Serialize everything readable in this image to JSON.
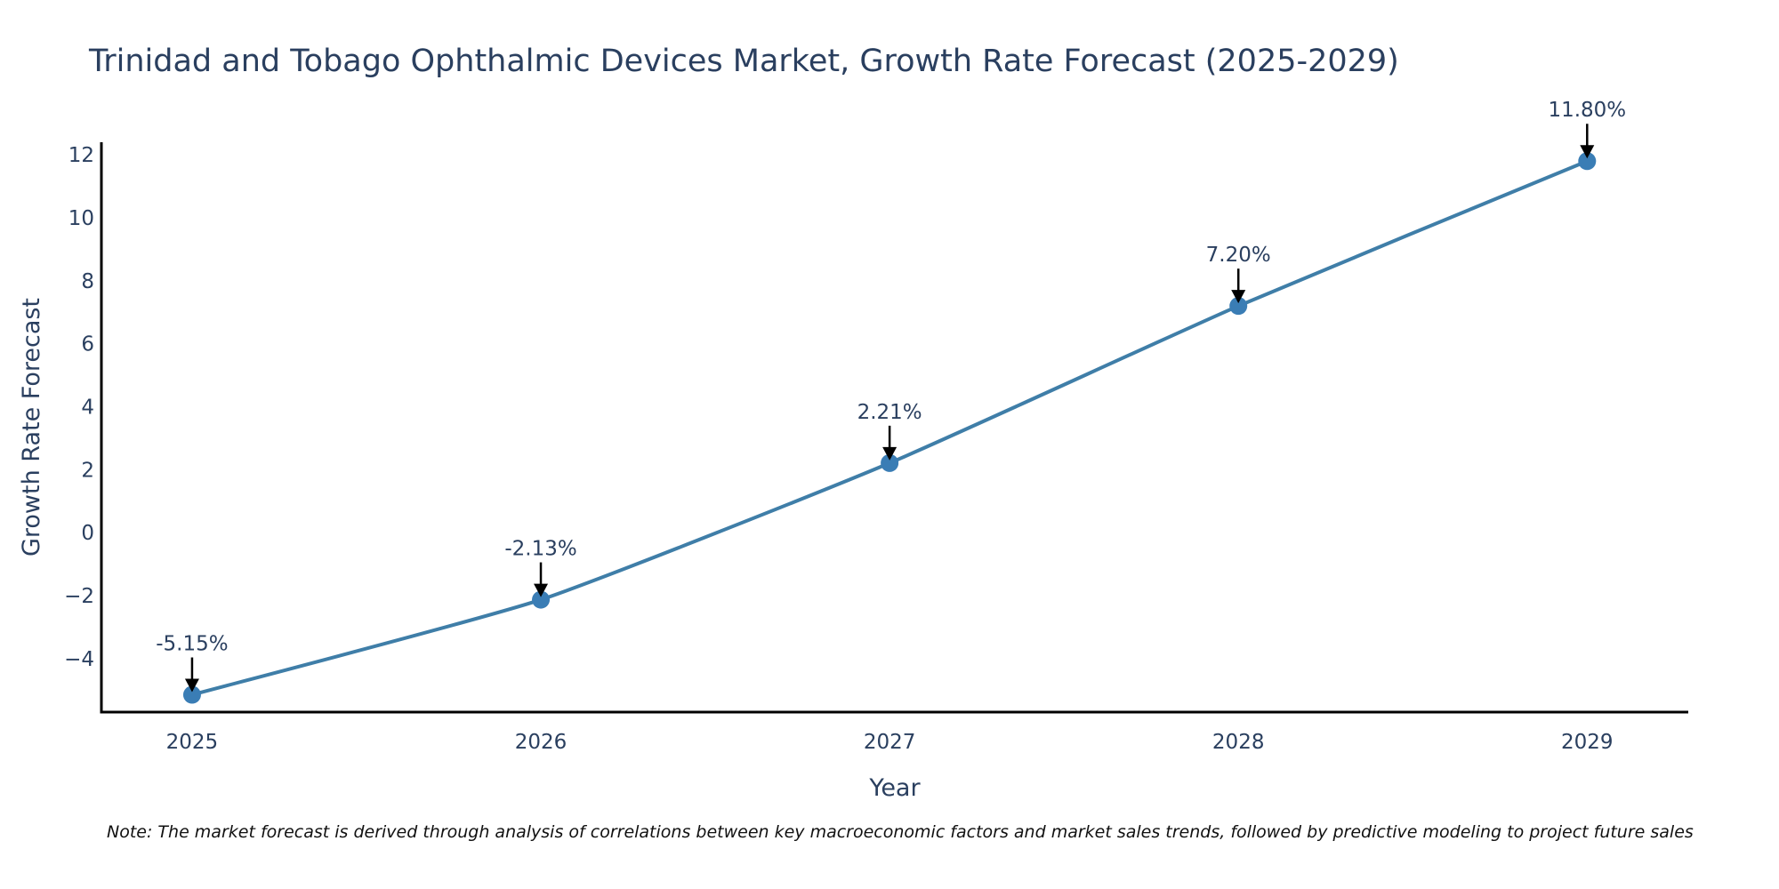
{
  "chart_data": {
    "type": "line",
    "title": "Trinidad and Tobago Ophthalmic Devices Market, Growth Rate Forecast (2025-2029)",
    "xlabel": "Year",
    "ylabel": "Growth Rate Forecast",
    "categories": [
      "2025",
      "2026",
      "2027",
      "2028",
      "2029"
    ],
    "x": [
      2025,
      2026,
      2027,
      2028,
      2029
    ],
    "values": [
      -5.15,
      -2.13,
      2.21,
      7.2,
      11.8
    ],
    "annotations": [
      "-5.15%",
      "-2.13%",
      "2.21%",
      "7.20%",
      "11.80%"
    ],
    "yticks": [
      -4,
      -2,
      0,
      2,
      4,
      6,
      8,
      10,
      12
    ],
    "ytick_labels": [
      "−4",
      "−2",
      "0",
      "2",
      "4",
      "6",
      "8",
      "10",
      "12"
    ],
    "ylim": [
      -5.7,
      12.4
    ],
    "xlim": [
      2024.74,
      2029.29
    ],
    "grid": false,
    "legend": "none",
    "line_color": "#3f7ea8",
    "marker_color": "#3a7db5",
    "note": "Note: The market forecast is derived through analysis of correlations between key macroeconomic factors and market sales trends, followed by predictive modeling to project future sales"
  }
}
